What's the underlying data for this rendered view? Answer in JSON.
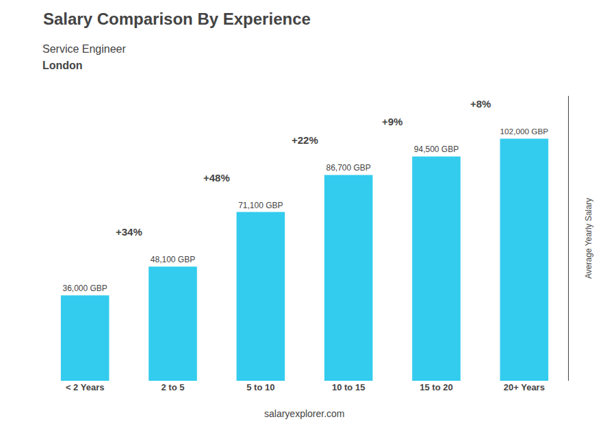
{
  "chart_data": {
    "type": "bar",
    "title": "Salary Comparison By Experience",
    "subtitle": "Service Engineer",
    "city": "London",
    "ylabel": "Average Yearly Salary",
    "watermark": "salaryexplorer.com",
    "categories": [
      "< 2 Years",
      "2 to 5",
      "5 to 10",
      "10 to 15",
      "15 to 20",
      "20+ Years"
    ],
    "values": [
      36000,
      48100,
      71100,
      86700,
      94500,
      102000
    ],
    "value_labels": [
      "36,000 GBP",
      "48,100 GBP",
      "71,100 GBP",
      "86,700 GBP",
      "94,500 GBP",
      "102,000 GBP"
    ],
    "data_labels": true,
    "annotations": [
      "+34%",
      "+48%",
      "+22%",
      "+9%",
      "+8%"
    ],
    "color": "#33CCEE",
    "ylim": [
      0,
      120000
    ],
    "grid": false,
    "tick_labels": "x"
  }
}
